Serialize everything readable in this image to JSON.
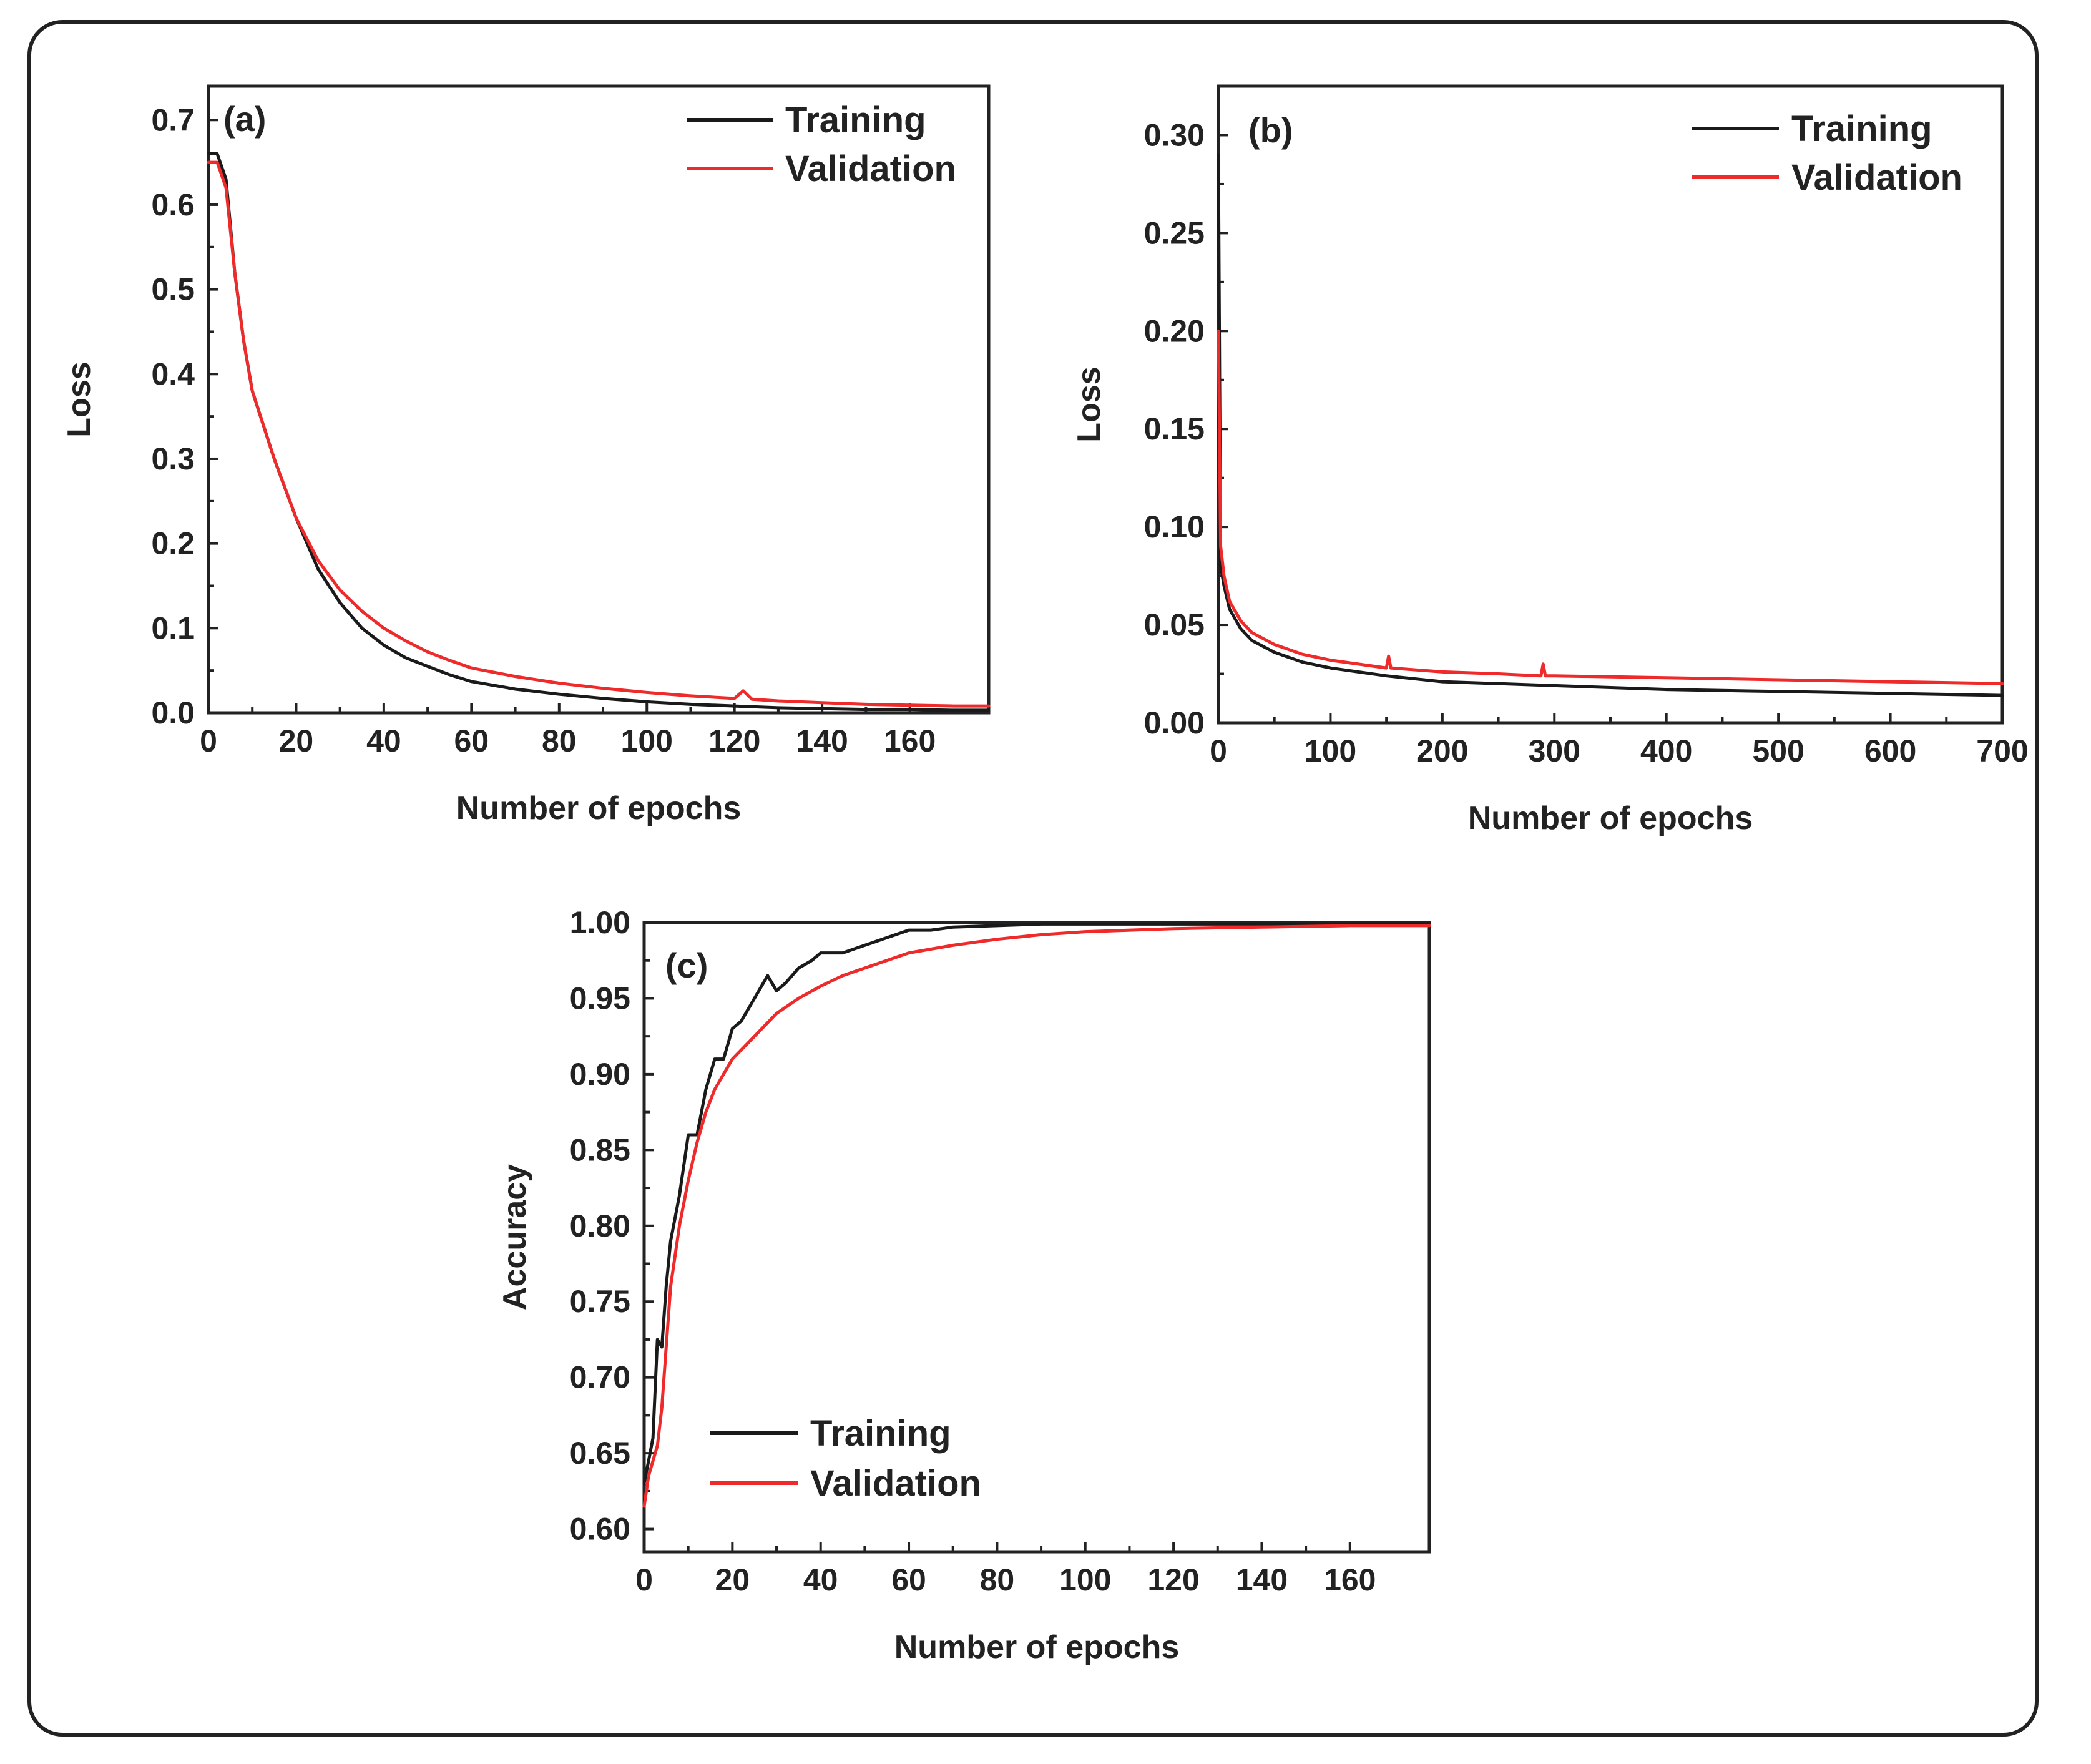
{
  "colors": {
    "training": "#1a1a1a",
    "validation": "#ee2a2a",
    "axis": "#222222"
  },
  "chart_data": [
    {
      "id": "a",
      "type": "line",
      "panel_label": "(a)",
      "xlabel": "Number of epochs",
      "ylabel": "Loss",
      "xlim": [
        0,
        178
      ],
      "ylim": [
        0,
        0.74
      ],
      "xticks": [
        0,
        20,
        40,
        60,
        80,
        100,
        120,
        140,
        160
      ],
      "yticks": [
        0.0,
        0.1,
        0.2,
        0.3,
        0.4,
        0.5,
        0.6,
        0.7
      ],
      "ytick_labels": [
        "0.0",
        "0.1",
        "0.2",
        "0.3",
        "0.4",
        "0.5",
        "0.6",
        "0.7"
      ],
      "legend_position": "top-right",
      "series": [
        {
          "name": "Training",
          "color_key": "training",
          "x": [
            0,
            2,
            4,
            6,
            8,
            10,
            15,
            20,
            25,
            30,
            35,
            40,
            45,
            50,
            55,
            60,
            70,
            80,
            90,
            100,
            110,
            120,
            130,
            140,
            150,
            160,
            170,
            178
          ],
          "y": [
            0.66,
            0.66,
            0.63,
            0.52,
            0.44,
            0.38,
            0.3,
            0.23,
            0.17,
            0.13,
            0.1,
            0.08,
            0.065,
            0.055,
            0.045,
            0.037,
            0.028,
            0.022,
            0.017,
            0.013,
            0.01,
            0.008,
            0.006,
            0.005,
            0.004,
            0.004,
            0.003,
            0.003
          ]
        },
        {
          "name": "Validation",
          "color_key": "validation",
          "x": [
            0,
            2,
            4,
            6,
            8,
            10,
            15,
            20,
            25,
            30,
            35,
            40,
            45,
            50,
            55,
            60,
            70,
            80,
            90,
            100,
            110,
            120,
            122,
            124,
            130,
            140,
            150,
            160,
            170,
            178
          ],
          "y": [
            0.65,
            0.65,
            0.62,
            0.52,
            0.44,
            0.38,
            0.3,
            0.23,
            0.18,
            0.145,
            0.12,
            0.1,
            0.085,
            0.072,
            0.062,
            0.053,
            0.043,
            0.035,
            0.029,
            0.024,
            0.02,
            0.017,
            0.026,
            0.016,
            0.014,
            0.012,
            0.01,
            0.009,
            0.008,
            0.008
          ]
        }
      ]
    },
    {
      "id": "b",
      "type": "line",
      "panel_label": "(b)",
      "xlabel": "Number of epochs",
      "ylabel": "Loss",
      "xlim": [
        0,
        700
      ],
      "ylim": [
        0,
        0.325
      ],
      "xticks": [
        0,
        100,
        200,
        300,
        400,
        500,
        600,
        700
      ],
      "yticks": [
        0.0,
        0.05,
        0.1,
        0.15,
        0.2,
        0.25,
        0.3
      ],
      "ytick_labels": [
        "0.00",
        "0.05",
        "0.10",
        "0.15",
        "0.20",
        "0.25",
        "0.30"
      ],
      "legend_position": "top-right",
      "series": [
        {
          "name": "Training",
          "color_key": "training",
          "x": [
            0,
            2,
            5,
            10,
            20,
            30,
            50,
            75,
            100,
            150,
            200,
            250,
            300,
            400,
            500,
            600,
            700
          ],
          "y": [
            0.29,
            0.08,
            0.07,
            0.058,
            0.048,
            0.042,
            0.036,
            0.031,
            0.028,
            0.024,
            0.021,
            0.02,
            0.019,
            0.017,
            0.016,
            0.015,
            0.014
          ]
        },
        {
          "name": "Validation",
          "color_key": "validation",
          "x": [
            0,
            2,
            5,
            10,
            20,
            30,
            50,
            75,
            100,
            150,
            152,
            154,
            200,
            250,
            288,
            290,
            292,
            300,
            400,
            500,
            600,
            700
          ],
          "y": [
            0.2,
            0.09,
            0.075,
            0.062,
            0.052,
            0.046,
            0.04,
            0.035,
            0.032,
            0.028,
            0.034,
            0.028,
            0.026,
            0.025,
            0.024,
            0.03,
            0.024,
            0.024,
            0.023,
            0.022,
            0.021,
            0.02
          ]
        }
      ]
    },
    {
      "id": "c",
      "type": "line",
      "panel_label": "(c)",
      "xlabel": "Number of epochs",
      "ylabel": "Accuracy",
      "xlim": [
        0,
        178
      ],
      "ylim": [
        0.585,
        1.0
      ],
      "xticks": [
        0,
        20,
        40,
        60,
        80,
        100,
        120,
        140,
        160
      ],
      "yticks": [
        0.6,
        0.65,
        0.7,
        0.75,
        0.8,
        0.85,
        0.9,
        0.95,
        1.0
      ],
      "ytick_labels": [
        "0.60",
        "0.65",
        "0.70",
        "0.75",
        "0.80",
        "0.85",
        "0.90",
        "0.95",
        "1.00"
      ],
      "legend_position": "bottom-left",
      "series": [
        {
          "name": "Training",
          "color_key": "training",
          "x": [
            0,
            1,
            2,
            3,
            4,
            5,
            6,
            8,
            10,
            12,
            14,
            16,
            18,
            20,
            22,
            25,
            28,
            30,
            32,
            35,
            38,
            40,
            45,
            50,
            55,
            60,
            65,
            70,
            80,
            90,
            100,
            120,
            140,
            160,
            178
          ],
          "y": [
            0.63,
            0.645,
            0.66,
            0.725,
            0.72,
            0.76,
            0.79,
            0.82,
            0.86,
            0.86,
            0.89,
            0.91,
            0.91,
            0.93,
            0.935,
            0.95,
            0.965,
            0.955,
            0.96,
            0.97,
            0.975,
            0.98,
            0.98,
            0.985,
            0.99,
            0.995,
            0.995,
            0.997,
            0.998,
            0.999,
            0.999,
            0.999,
            0.999,
            0.999,
            0.999
          ]
        },
        {
          "name": "Validation",
          "color_key": "validation",
          "x": [
            0,
            1,
            2,
            3,
            4,
            5,
            6,
            8,
            10,
            12,
            14,
            16,
            18,
            20,
            25,
            30,
            35,
            40,
            45,
            50,
            55,
            60,
            70,
            80,
            90,
            100,
            120,
            140,
            160,
            178
          ],
          "y": [
            0.615,
            0.635,
            0.645,
            0.655,
            0.68,
            0.72,
            0.76,
            0.8,
            0.83,
            0.855,
            0.875,
            0.89,
            0.9,
            0.91,
            0.925,
            0.94,
            0.95,
            0.958,
            0.965,
            0.97,
            0.975,
            0.98,
            0.985,
            0.989,
            0.992,
            0.994,
            0.996,
            0.997,
            0.998,
            0.998
          ]
        }
      ]
    }
  ]
}
